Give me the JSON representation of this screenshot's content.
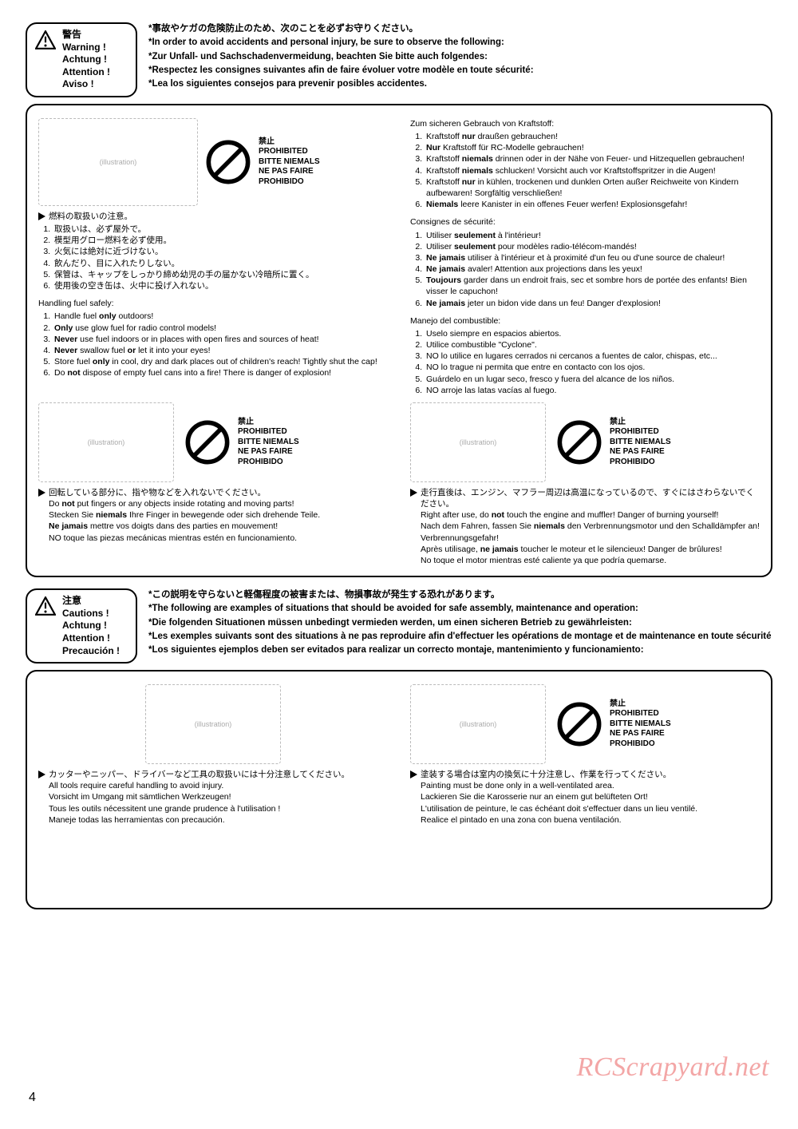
{
  "prohibited": {
    "jp": "禁止",
    "en": "PROHIBITED",
    "de": "BITTE NIEMALS",
    "fr": "NE PAS FAIRE",
    "es": "PROHIBIDO"
  },
  "warning_header": {
    "labels": {
      "jp": "警告",
      "en": "Warning !",
      "de": "Achtung !",
      "fr": "Attention !",
      "es": "Aviso !"
    },
    "lines": [
      "*事故やケガの危険防止のため、次のことを必ずお守りください。",
      "*In order to avoid accidents and personal injury, be sure to observe the following:",
      "*Zur Unfall- und Sachschadenvermeidung, beachten Sie bitte auch folgendes:",
      "*Respectez les consignes suivantes afin de faire évoluer votre modèle en toute sécurité:",
      "*Lea los siguientes consejos para prevenir posibles accidentes."
    ]
  },
  "caution_header": {
    "labels": {
      "jp": "注意",
      "en": "Cautions !",
      "de": "Achtung !",
      "fr": "Attention !",
      "es": "Precaución !"
    },
    "lines": [
      "*この説明を守らないと軽傷程度の被害または、物損事故が発生する恐れがあります。",
      "*The following are examples of situations that should be avoided for safe assembly, maintenance and operation:",
      "*Die folgenden Situationen müssen unbedingt vermieden werden, um einen sicheren Betrieb zu gewährleisten:",
      "*Les exemples suivants sont des situations à ne pas reproduire afin d'effectuer les opérations de montage et de maintenance en toute sécurité",
      "*Los siguientes ejemplos deben ser evitados para realizar un correcto montaje, mantenimiento y funcionamiento:"
    ]
  },
  "fuel_jp": {
    "head": "燃料の取扱いの注意。",
    "items": [
      "取扱いは、必ず屋外で。",
      "模型用グロー燃料を必ず使用。",
      "火気には絶対に近づけない。",
      "飲んだり、目に入れたりしない。",
      "保管は、キャップをしっかり締め幼児の手の届かない冷暗所に置く。",
      "使用後の空き缶は、火中に投げ入れない。"
    ]
  },
  "fuel_en": {
    "head": "Handling fuel safely:",
    "items": [
      "Handle fuel <b>only</b> outdoors!",
      "<b>Only</b> use glow fuel for radio control models!",
      "<b>Never</b> use fuel indoors or in places with open fires and sources of heat!",
      "<b>Never</b> swallow fuel <b>or</b> let it into your eyes!",
      "Store fuel <b>only</b> in cool, dry and dark places out of children's reach! Tightly shut the cap!",
      "Do <b>not</b> dispose of empty fuel cans into a fire! There is danger of explosion!"
    ]
  },
  "fuel_de": {
    "head": "Zum sicheren Gebrauch von Kraftstoff:",
    "items": [
      "Kraftstoff <b>nur</b> draußen gebrauchen!",
      "<b>Nur</b> Kraftstoff für RC-Modelle gebrauchen!",
      "Kraftstoff <b>niemals</b> drinnen oder in der Nähe von Feuer- und Hitzequellen gebrauchen!",
      "Kraftstoff <b>niemals</b> schlucken! Vorsicht auch vor Kraftstoffspritzer in die Augen!",
      "Kraftstoff <b>nur</b> in kühlen, trockenen und dunklen Orten außer Reichweite von Kindern aufbewaren! Sorgfältig verschließen!",
      "<b>Niemals</b> leere Kanister in ein offenes Feuer werfen! Explosionsgefahr!"
    ]
  },
  "fuel_fr": {
    "head": "Consignes de sécurité:",
    "items": [
      "Utiliser <b>seulement</b> à l'intérieur!",
      "Utiliser <b>seulement</b> pour modèles radio-télécom-mandés!",
      "<b>Ne jamais</b> utiliser à l'intérieur et à proximité d'un feu ou d'une source de chaleur!",
      "<b>Ne jamais</b> avaler! Attention aux projections dans les yeux!",
      "<b>Toujours</b> garder dans un endroit frais, sec et sombre hors de portée des enfants! Bien visser le capuchon!",
      "<b>Ne jamais</b> jeter un bidon vide dans un feu! Danger d'explosion!"
    ]
  },
  "fuel_es": {
    "head": "Manejo del combustible:",
    "items": [
      "Uselo siempre en espacios abiertos.",
      "Utilice combustible \"Cyclone\".",
      "NO lo utilice en lugares cerrados ni cercanos a fuentes de calor, chispas, etc...",
      "NO lo trague ni permita que entre en contacto con los ojos.",
      "Guárdelo en un lugar seco, fresco y fuera del alcance de los niños.",
      "NO arroje las latas vacías al fuego."
    ]
  },
  "rotating": {
    "jp": "回転している部分に、指や物などを入れないでください。",
    "en": "Do <b>not</b> put fingers or any objects inside rotating and moving parts!",
    "de": "Stecken Sie <b>niemals</b> Ihre Finger in bewegende oder sich drehende Teile.",
    "fr": "<b>Ne jamais</b> mettre vos doigts dans des parties en mouvement!",
    "es": "NO toque las piezas mecánicas mientras estén en funcionamiento."
  },
  "hot_engine": {
    "jp": "走行直後は、エンジン、マフラー周辺は高温になっているので、すぐにはさわらないでください。",
    "en": "Right after use, do <b>not</b> touch the engine and muffler! Danger of burning yourself!",
    "de": "Nach dem Fahren, fassen Sie <b>niemals</b> den Verbrennungsmotor und den Schalldämpfer an! Verbrennungsgefahr!",
    "fr": "Après utilisage, <b>ne jamais</b> toucher le moteur et le silencieux! Danger de brûlures!",
    "es": "No toque el motor mientras esté caliente ya que podría quemarse."
  },
  "tools": {
    "jp": "カッターやニッパー、ドライバーなど工具の取扱いには十分注意してください。",
    "en": "All tools require careful handling to avoid injury.",
    "de": "Vorsicht im Umgang mit sämtlichen Werkzeugen!",
    "fr": "Tous les outils nécessitent une grande prudence à l'utilisation !",
    "es": "Maneje todas las herramientas con precaución."
  },
  "painting": {
    "jp": "塗装する場合は室内の換気に十分注意し、作業を行ってください。",
    "en": "Painting must be done only in a well-ventilated area.",
    "de": "Lackieren Sie die Karosserie nur an einem gut belüfteten Ort!",
    "fr": "L'utilisation de peinture, le cas échéant doit s'effectuer dans un lieu ventilé.",
    "es": "Realice el pintado en una zona con buena ventilación."
  },
  "watermark": "RCScrapyard.net",
  "page_number": "4"
}
